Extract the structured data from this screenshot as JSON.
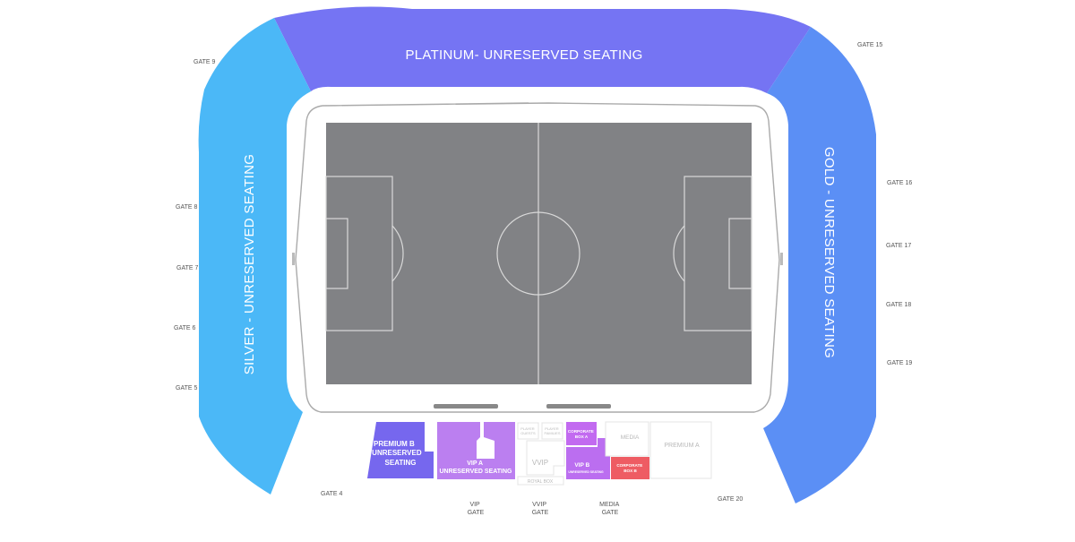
{
  "colors": {
    "platinum": "#7574f3",
    "silver": "#4bb8f7",
    "gold": "#5b8ff5",
    "premium_b": "#7667ee",
    "vip_a": "#bb7ff0",
    "vip_b": "#bb6ef0",
    "corporate_a": "#c26af0",
    "corporate_b": "#ee5c63",
    "pitch": "#818285",
    "pitch_lines": "#d9d9d9",
    "disabled_outline": "#e4e4e4",
    "disabled_text": "#b8b8b8",
    "gate_text": "#555555"
  },
  "stands": {
    "platinum": "PLATINUM- UNRESERVED SEATING",
    "silver": "SILVER - UNRESERVED SEATING",
    "gold": "GOLD - UNRESERVED SEATING"
  },
  "sections": {
    "premium_b": [
      "PREMIUM B",
      "UNRESERVED",
      "SEATING"
    ],
    "vip_a": [
      "VIP A",
      "UNRESERVED SEATING"
    ],
    "players_guests": [
      "PLAYER",
      "GUESTS"
    ],
    "players_families": [
      "PLAYER",
      "FAMILIES"
    ],
    "corporate_a": [
      "CORPORATE",
      "BOX A"
    ],
    "corporate_b": [
      "CORPORATE",
      "BOX B"
    ],
    "vip_b": [
      "VIP B",
      "UNRESERVED SEATING"
    ],
    "vvip": "VVIP",
    "royal_box": "ROYAL BOX",
    "media": "MEDIA",
    "premium_a": "PREMIUM A"
  },
  "gates": {
    "gate9": "GATE 9",
    "gate8": "GATE 8",
    "gate7": "GATE 7",
    "gate6": "GATE 6",
    "gate5": "GATE 5",
    "gate4": "GATE 4",
    "gate15": "GATE 15",
    "gate16": "GATE 16",
    "gate17": "GATE 17",
    "gate18": "GATE 18",
    "gate19": "GATE 19",
    "gate20": "GATE 20",
    "vip_gate": [
      "VIP",
      "GATE"
    ],
    "vvip_gate": [
      "VVIP",
      "GATE"
    ],
    "media_gate": [
      "MEDIA",
      "GATE"
    ]
  }
}
